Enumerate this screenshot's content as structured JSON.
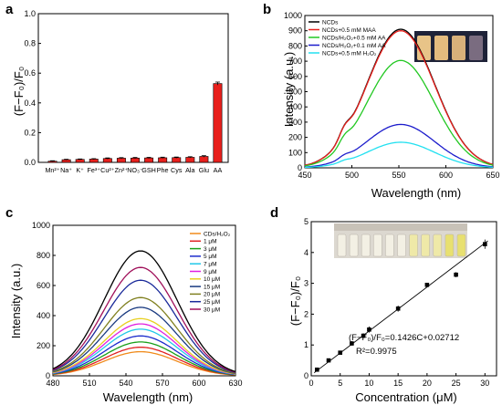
{
  "chart_data": [
    {
      "panel": "a",
      "type": "bar",
      "ylabel": "(F−F₀)/F₀",
      "ylim": [
        0,
        1.0
      ],
      "yticks": [
        "0.0",
        "0.2",
        "0.4",
        "0.6",
        "0.8",
        "1.0"
      ],
      "categories": [
        "Mn²⁺",
        "Na⁺",
        "K⁺",
        "Fe³⁺",
        "Cu²⁺",
        "Zn²⁺",
        "NO₃⁻",
        "GSH",
        "Phe",
        "Cys",
        "Ala",
        "Glu",
        "AA"
      ],
      "values": [
        0.008,
        0.018,
        0.02,
        0.022,
        0.026,
        0.028,
        0.029,
        0.03,
        0.031,
        0.032,
        0.034,
        0.04,
        0.53
      ],
      "errors": [
        0.003,
        0.003,
        0.003,
        0.003,
        0.004,
        0.004,
        0.004,
        0.004,
        0.004,
        0.004,
        0.004,
        0.005,
        0.01
      ],
      "color": "#e8201c"
    },
    {
      "panel": "b",
      "type": "line",
      "xlabel": "Wavelength (nm)",
      "ylabel": "Intensity (a.u.)",
      "xlim": [
        450,
        650
      ],
      "ylim": [
        0,
        1000
      ],
      "xticks": [
        450,
        500,
        550,
        600,
        650
      ],
      "yticks": [
        0,
        100,
        200,
        300,
        400,
        500,
        600,
        700,
        800,
        900,
        1000
      ],
      "peak_x": 552,
      "series": [
        {
          "name": "NCDs",
          "color": "#000000",
          "peak": 910
        },
        {
          "name": "NCDs+0.5 mM MAA",
          "color": "#e8201c",
          "peak": 900
        },
        {
          "name": "NCDs/H₂O₂+0.5 mM AA",
          "color": "#22c822",
          "peak": 705
        },
        {
          "name": "NCDs/H₂O₂+0.1 mM AA",
          "color": "#1c1ccc",
          "peak": 285
        },
        {
          "name": "NCDs+0.5 mM H₂O₂",
          "color": "#22e0f0",
          "peak": 168
        }
      ]
    },
    {
      "panel": "c",
      "type": "line",
      "xlabel": "Wavelength (nm)",
      "ylabel": "Intensity (a.u.)",
      "xlim": [
        480,
        630
      ],
      "ylim": [
        0,
        1000
      ],
      "xticks": [
        480,
        510,
        540,
        570,
        600,
        630
      ],
      "yticks": [
        0,
        200,
        400,
        600,
        800,
        1000
      ],
      "peak_x": 552,
      "series": [
        {
          "name": "CDs/H₂O₂",
          "color": "#f08a1a",
          "peak": 160
        },
        {
          "name": "1 μM",
          "color": "#e02222",
          "peak": 190
        },
        {
          "name": "3 μM",
          "color": "#1aa01a",
          "peak": 225
        },
        {
          "name": "5 μM",
          "color": "#1c2ccc",
          "peak": 265
        },
        {
          "name": "7 μM",
          "color": "#20c8e8",
          "peak": 310
        },
        {
          "name": "9 μM",
          "color": "#e020e0",
          "peak": 345
        },
        {
          "name": "10 μM",
          "color": "#e8d020",
          "peak": 380
        },
        {
          "name": "15 μM",
          "color": "#1a3a80",
          "peak": 455
        },
        {
          "name": "20 μM",
          "color": "#808020",
          "peak": 520
        },
        {
          "name": "25 μM",
          "color": "#1a2a9a",
          "peak": 635
        },
        {
          "name": "30 μM",
          "color": "#a0105a",
          "peak": 720
        },
        {
          "name": "",
          "color": "#000000",
          "peak": 830
        }
      ]
    },
    {
      "panel": "d",
      "type": "scatter",
      "xlabel": "Concentration (μM)",
      "ylabel": "(F−F₀)/F₀",
      "xlim": [
        0,
        32
      ],
      "ylim": [
        0,
        5
      ],
      "xticks": [
        0,
        5,
        10,
        15,
        20,
        25,
        30
      ],
      "yticks": [
        0,
        1,
        2,
        3,
        4,
        5
      ],
      "x": [
        1,
        3,
        5,
        7,
        9,
        10,
        15,
        20,
        25,
        30
      ],
      "y": [
        0.2,
        0.5,
        0.75,
        1.05,
        1.3,
        1.5,
        2.18,
        2.95,
        3.28,
        4.27
      ],
      "errors": [
        0.05,
        0.05,
        0.06,
        0.07,
        0.08,
        0.1,
        0.1,
        0.05,
        0.08,
        0.15
      ],
      "fit": {
        "slope": 0.1426,
        "intercept": 0.02712
      },
      "equation": "(F−F₀)/F₀=0.1426C+0.02712",
      "r2": "R²=0.9975"
    }
  ],
  "panel_labels": [
    "a",
    "b",
    "c",
    "d"
  ]
}
